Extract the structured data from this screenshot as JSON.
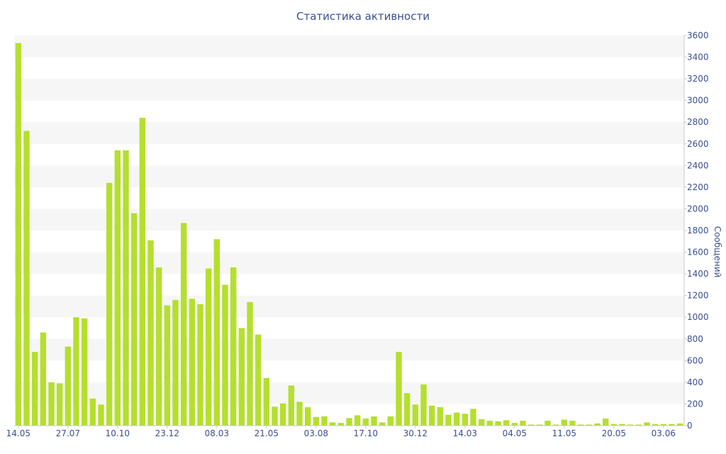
{
  "chart_data": {
    "type": "bar",
    "title": "Статистика активности",
    "ylabel": "Сообщений",
    "ylim": [
      0,
      3600
    ],
    "yticks": [
      0,
      200,
      400,
      600,
      800,
      1000,
      1200,
      1400,
      1600,
      1800,
      2000,
      2200,
      2400,
      2600,
      2800,
      3000,
      3200,
      3400,
      3600
    ],
    "y_axis_side": "right",
    "x_tick_labels": [
      {
        "index": 0,
        "label": "14.05"
      },
      {
        "index": 6,
        "label": "27.07"
      },
      {
        "index": 12,
        "label": "10.10"
      },
      {
        "index": 18,
        "label": "23.12"
      },
      {
        "index": 24,
        "label": "08.03"
      },
      {
        "index": 30,
        "label": "21.05"
      },
      {
        "index": 36,
        "label": "03.08"
      },
      {
        "index": 42,
        "label": "17.10"
      },
      {
        "index": 48,
        "label": "30.12"
      },
      {
        "index": 54,
        "label": "14.03"
      },
      {
        "index": 60,
        "label": "04.05"
      },
      {
        "index": 66,
        "label": "11.05"
      },
      {
        "index": 72,
        "label": "20.05"
      },
      {
        "index": 78,
        "label": "03.06"
      }
    ],
    "values": [
      3530,
      2720,
      680,
      860,
      400,
      390,
      730,
      1000,
      990,
      250,
      195,
      2240,
      2540,
      2540,
      1960,
      2840,
      1710,
      1460,
      1110,
      1160,
      1870,
      1170,
      1120,
      1450,
      1720,
      1300,
      1460,
      900,
      1140,
      840,
      440,
      175,
      205,
      370,
      220,
      170,
      80,
      85,
      30,
      25,
      70,
      95,
      65,
      85,
      30,
      85,
      680,
      300,
      195,
      380,
      185,
      170,
      100,
      120,
      110,
      155,
      60,
      45,
      40,
      50,
      25,
      45,
      10,
      10,
      45,
      10,
      55,
      45,
      10,
      10,
      20,
      65,
      15,
      15,
      10,
      10,
      30,
      15,
      15,
      15,
      20
    ],
    "bar_color": "#b5df2e",
    "grid": true,
    "legend": "none"
  }
}
